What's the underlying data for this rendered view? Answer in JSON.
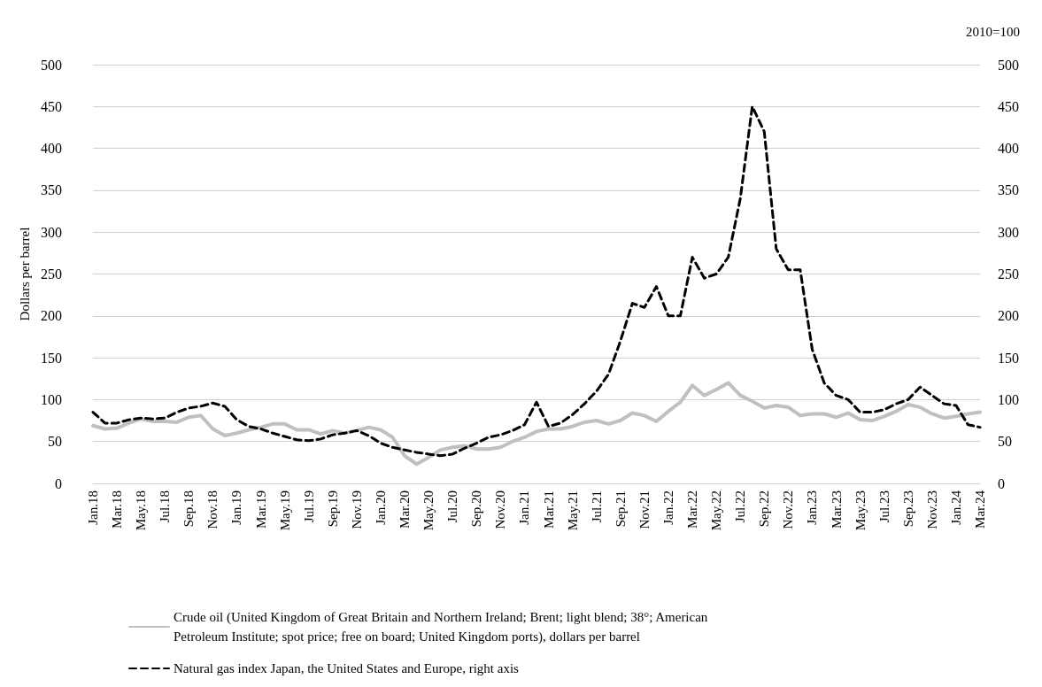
{
  "chart_data": {
    "type": "line",
    "categories": [
      "Jan.18",
      null,
      "Mar.18",
      null,
      "May.18",
      null,
      "Jul.18",
      null,
      "Sep.18",
      null,
      "Nov.18",
      null,
      "Jan.19",
      null,
      "Mar.19",
      null,
      "May.19",
      null,
      "Jul.19",
      null,
      "Sep.19",
      null,
      "Nov.19",
      null,
      "Jan.20",
      null,
      "Mar.20",
      null,
      "May.20",
      null,
      "Jul.20",
      null,
      "Sep.20",
      null,
      "Nov.20",
      null,
      "Jan.21",
      null,
      "Mar.21",
      null,
      "May.21",
      null,
      "Jul.21",
      null,
      "Sep.21",
      null,
      "Nov.21",
      null,
      "Jan.22",
      null,
      "Mar.22",
      null,
      "May.22",
      null,
      "Jul.22",
      null,
      "Sep.22",
      null,
      "Nov.22",
      null,
      "Jan.23",
      null,
      "Mar.23",
      null,
      "May.23",
      null,
      "Jul.23",
      null,
      "Sep.23",
      null,
      "Nov.23",
      null,
      "Jan.24",
      null,
      "Mar.24"
    ],
    "series": [
      {
        "name": "Crude oil (United Kingdom of Great Britain and Northern Ireland; Brent; light blend; 38°; American Petroleum Institute; spot price; free on board; United Kingdom ports), dollars per barrel",
        "color": "#c0c0c0",
        "line_style": "solid",
        "values": [
          69,
          65,
          66,
          72,
          77,
          74,
          74,
          73,
          79,
          81,
          65,
          57,
          60,
          64,
          67,
          71,
          71,
          64,
          64,
          59,
          63,
          60,
          63,
          67,
          64,
          55,
          33,
          23,
          31,
          40,
          43,
          45,
          41,
          41,
          43,
          50,
          55,
          62,
          65,
          65,
          68,
          73,
          75,
          71,
          75,
          84,
          81,
          74,
          86,
          97,
          117,
          105,
          112,
          120,
          105,
          98,
          90,
          93,
          91,
          81,
          83,
          83,
          79,
          84,
          76,
          75,
          80,
          86,
          94,
          91,
          83,
          78,
          80,
          83,
          85
        ]
      },
      {
        "name": "Natural gas index Japan, the United States and Europe, right axis",
        "color": "#000000",
        "line_style": "dashed",
        "axis": "y2",
        "values": [
          85,
          72,
          72,
          76,
          78,
          77,
          78,
          85,
          90,
          92,
          96,
          92,
          76,
          68,
          65,
          60,
          56,
          52,
          51,
          53,
          58,
          60,
          63,
          57,
          48,
          43,
          40,
          37,
          35,
          33,
          35,
          42,
          48,
          55,
          58,
          63,
          70,
          97,
          68,
          72,
          82,
          95,
          110,
          130,
          170,
          215,
          210,
          235,
          200,
          200,
          270,
          245,
          250,
          270,
          340,
          450,
          420,
          280,
          255,
          255,
          160,
          120,
          105,
          100,
          85,
          85,
          88,
          95,
          100,
          115,
          105,
          95,
          93,
          70,
          67
        ]
      }
    ],
    "ylabel": "Dollars per barrel",
    "y2label": "2010=100",
    "ylim": [
      0,
      500
    ],
    "yticks": [
      0,
      50,
      100,
      150,
      200,
      250,
      300,
      350,
      400,
      450,
      500
    ],
    "y2lim": [
      0,
      500
    ],
    "y2ticks": [
      0,
      50,
      100,
      150,
      200,
      250,
      300,
      350,
      400,
      450,
      500
    ],
    "grid": "y",
    "legend": "bottom",
    "marker": "none"
  }
}
